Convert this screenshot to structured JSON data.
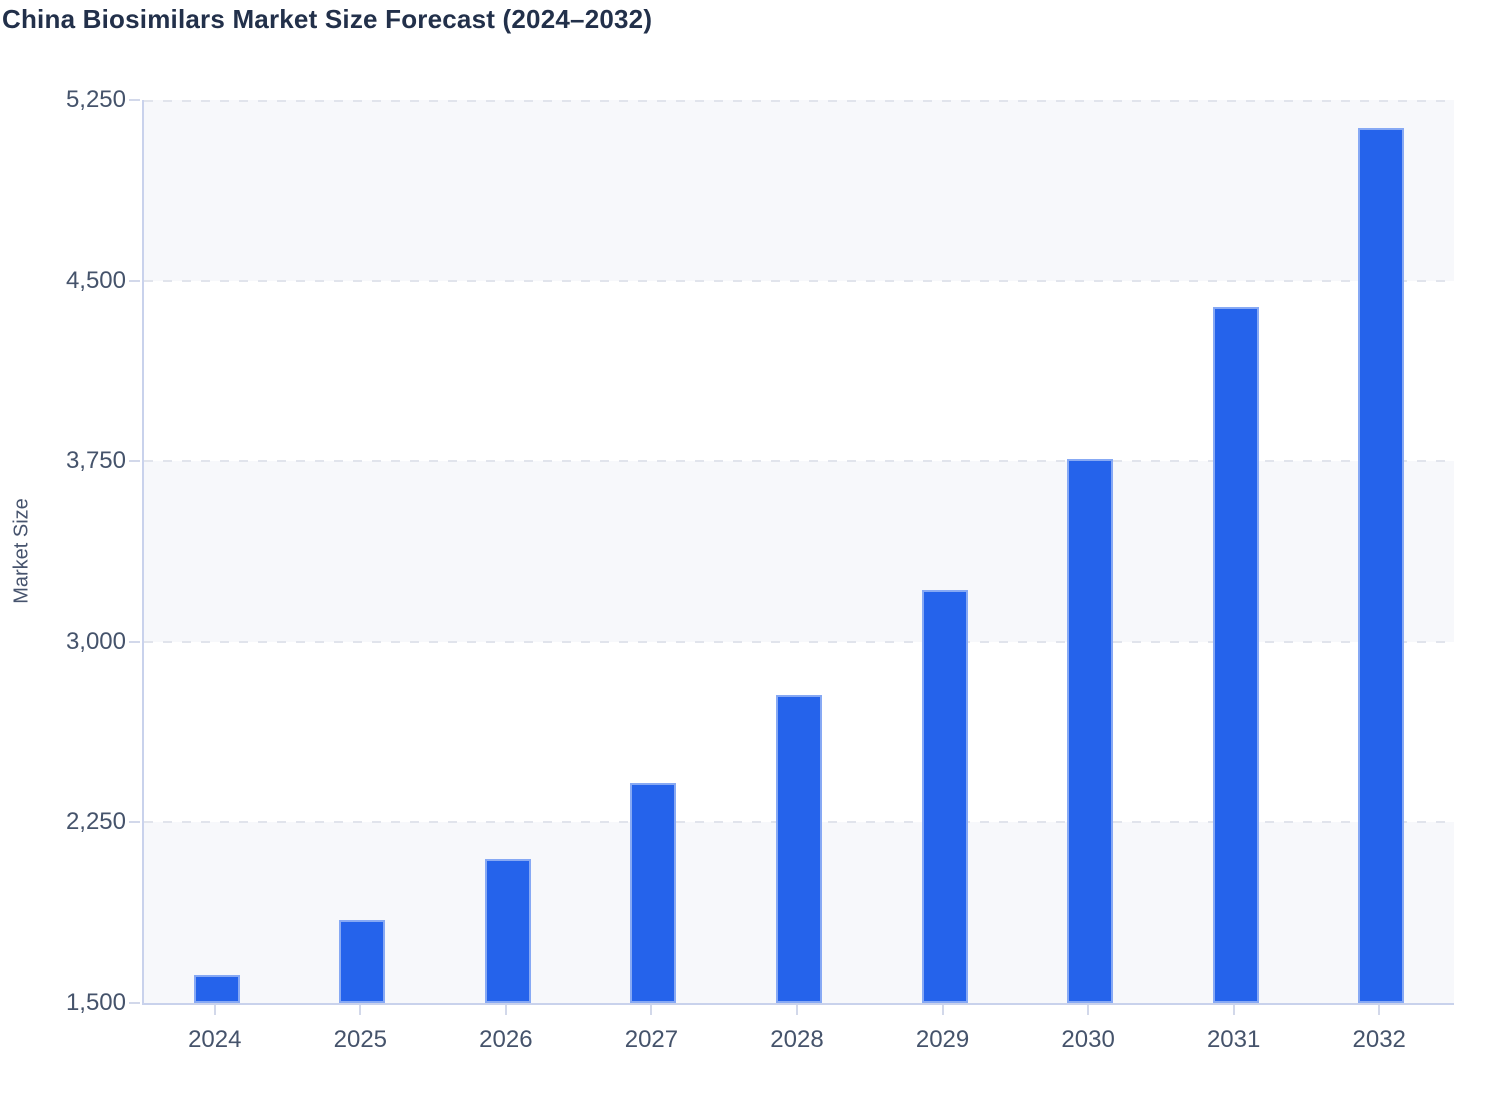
{
  "chart_data": {
    "type": "bar",
    "title": "China Biosimilars Market Size Forecast (2024–2032)",
    "ylabel": "Market Size",
    "xlabel": "",
    "series_name": "Market Size",
    "categories": [
      "2024",
      "2025",
      "2026",
      "2027",
      "2028",
      "2029",
      "2030",
      "2031",
      "2032"
    ],
    "values": [
      1617,
      1845,
      2100,
      2412,
      2778,
      3217,
      3760,
      4391,
      5135
    ],
    "ylim": [
      1500,
      5250
    ],
    "y_ticks": [
      1500,
      2250,
      3000,
      3750,
      4500,
      5250
    ],
    "y_tick_labels": [
      "1,500",
      "2,250",
      "3,000",
      "3,750",
      "4,500",
      "5,250"
    ],
    "grid": "horizontal dashed gridlines at y ticks",
    "background_bands": "alternating light/white horizontal bands between gridlines",
    "legend_position": "none"
  },
  "colors": {
    "page_background": "#ffffff",
    "bar_fill": "#2563eb",
    "bar_stroke": "rgba(255,255,255,0.45)",
    "band_light": "#f7f8fb",
    "band_white": "#ffffff",
    "gridline": "#e1e4ec",
    "axis_line": "#c9d2ec",
    "tick_mark": "#d2d8ea",
    "title_text": "#22304a",
    "tick_label_text": "#45536b",
    "axis_label_text": "#46536d"
  }
}
